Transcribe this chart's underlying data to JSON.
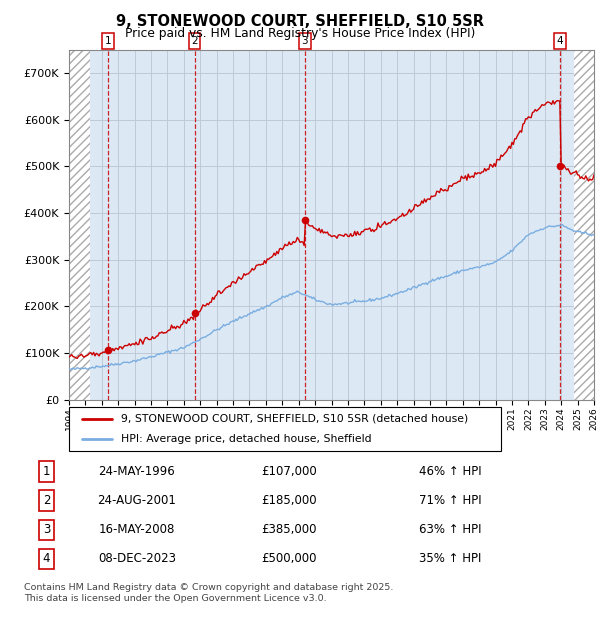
{
  "title_line1": "9, STONEWOOD COURT, SHEFFIELD, S10 5SR",
  "title_line2": "Price paid vs. HM Land Registry's House Price Index (HPI)",
  "xlim": [
    1994,
    2026
  ],
  "ylim": [
    0,
    750000
  ],
  "yticks": [
    0,
    100000,
    200000,
    300000,
    400000,
    500000,
    600000,
    700000
  ],
  "ytick_labels": [
    "£0",
    "£100K",
    "£200K",
    "£300K",
    "£400K",
    "£500K",
    "£600K",
    "£700K"
  ],
  "purchases": [
    {
      "num": 1,
      "date": "24-MAY-1996",
      "year": 1996.38,
      "price": 107000,
      "hpi_pct": "46%",
      "label": "1"
    },
    {
      "num": 2,
      "date": "24-AUG-2001",
      "year": 2001.65,
      "price": 185000,
      "hpi_pct": "71%",
      "label": "2"
    },
    {
      "num": 3,
      "date": "16-MAY-2008",
      "year": 2008.37,
      "price": 385000,
      "hpi_pct": "63%",
      "label": "3"
    },
    {
      "num": 4,
      "date": "08-DEC-2023",
      "year": 2023.93,
      "price": 500000,
      "hpi_pct": "35%",
      "label": "4"
    }
  ],
  "legend_line1": "9, STONEWOOD COURT, SHEFFIELD, S10 5SR (detached house)",
  "legend_line2": "HPI: Average price, detached house, Sheffield",
  "footer_line1": "Contains HM Land Registry data © Crown copyright and database right 2025.",
  "footer_line2": "This data is licensed under the Open Government Licence v3.0.",
  "property_color": "#cc0000",
  "hpi_color": "#7aade0",
  "bg_color": "#dce9f5",
  "grid_color": "#c0c8d8"
}
